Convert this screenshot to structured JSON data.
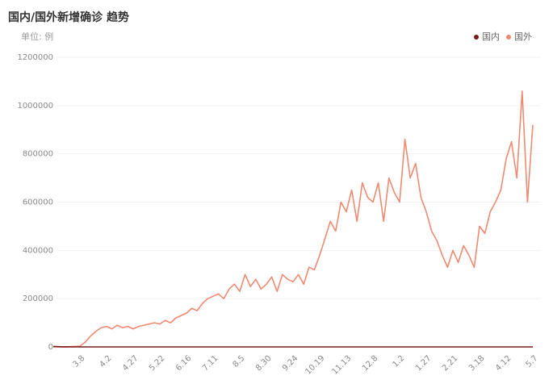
{
  "chart_data": {
    "type": "line",
    "title": "国内/国外新增确诊 趋势",
    "subtitle": "单位: 例",
    "categories": [
      null,
      null,
      null,
      null,
      null,
      "3.8",
      null,
      null,
      null,
      null,
      "4.2",
      null,
      null,
      null,
      null,
      "4.27",
      null,
      null,
      null,
      null,
      "5.22",
      null,
      null,
      null,
      null,
      "6.16",
      null,
      null,
      null,
      null,
      "7.11",
      null,
      null,
      null,
      null,
      "8.5",
      null,
      null,
      null,
      null,
      "8.30",
      null,
      null,
      null,
      null,
      "9.24",
      null,
      null,
      null,
      null,
      "10.19",
      null,
      null,
      null,
      null,
      "11.13",
      null,
      null,
      null,
      null,
      "12.8",
      null,
      null,
      null,
      null,
      "1.2",
      null,
      null,
      null,
      null,
      "1.27",
      null,
      null,
      null,
      null,
      "2.21",
      null,
      null,
      null,
      null,
      "3.18",
      null,
      null,
      null,
      null,
      "4.12",
      null,
      null,
      null,
      null,
      "5.7"
    ],
    "series": [
      {
        "name": "国内",
        "color": "#7a1a1a",
        "values": [
          2000,
          1000,
          400,
          200,
          100,
          40,
          30,
          50,
          60,
          40,
          30,
          50,
          40,
          20,
          10,
          10,
          10,
          20,
          10,
          10,
          10,
          10,
          10,
          10,
          10,
          20,
          30,
          20,
          10,
          10,
          20,
          30,
          40,
          30,
          20,
          30,
          20,
          10,
          10,
          10,
          10,
          10,
          10,
          10,
          10,
          10,
          10,
          10,
          10,
          10,
          20,
          10,
          10,
          20,
          10,
          20,
          20,
          10,
          20,
          30,
          30,
          40,
          50,
          60,
          80,
          100,
          120,
          90,
          60,
          40,
          20,
          10,
          10,
          10,
          10,
          10,
          10,
          10,
          10,
          10,
          10,
          10,
          10,
          10,
          10,
          10,
          10,
          10,
          10,
          10,
          10
        ]
      },
      {
        "name": "国外",
        "color": "#ee8a72",
        "values": [
          0,
          0,
          500,
          1000,
          2000,
          3000,
          20000,
          45000,
          65000,
          80000,
          85000,
          75000,
          90000,
          80000,
          85000,
          75000,
          85000,
          90000,
          95000,
          100000,
          95000,
          110000,
          100000,
          120000,
          130000,
          140000,
          160000,
          150000,
          180000,
          200000,
          210000,
          220000,
          200000,
          240000,
          260000,
          230000,
          300000,
          250000,
          280000,
          240000,
          260000,
          290000,
          230000,
          300000,
          280000,
          270000,
          300000,
          260000,
          330000,
          320000,
          380000,
          450000,
          520000,
          480000,
          600000,
          560000,
          650000,
          520000,
          680000,
          620000,
          600000,
          680000,
          520000,
          700000,
          640000,
          600000,
          860000,
          700000,
          760000,
          620000,
          560000,
          480000,
          440000,
          380000,
          330000,
          400000,
          350000,
          420000,
          380000,
          330000,
          500000,
          470000,
          560000,
          600000,
          650000,
          780000,
          850000,
          700000,
          1060000,
          600000,
          920000
        ]
      }
    ],
    "ylim": [
      0,
      1200000
    ],
    "yticks": [
      0,
      200000,
      400000,
      600000,
      800000,
      1000000,
      1200000
    ],
    "grid": true
  }
}
